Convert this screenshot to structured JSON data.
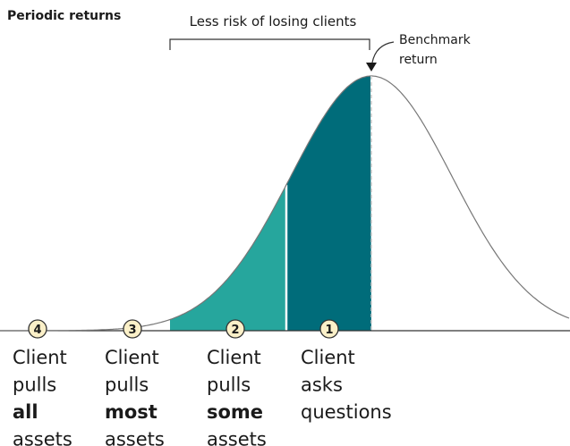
{
  "header": {
    "title": "Periodic returns"
  },
  "bracket": {
    "label": "Less risk of losing clients"
  },
  "benchmark": {
    "lines": [
      "Benchmark",
      "return"
    ]
  },
  "zones": [
    {
      "number": "4",
      "lines": [
        "Client",
        "pulls",
        "all",
        "assets"
      ]
    },
    {
      "number": "3",
      "lines": [
        "Client",
        "pulls",
        "most",
        "assets"
      ]
    },
    {
      "number": "2",
      "lines": [
        "Client",
        "pulls",
        "some",
        "assets"
      ]
    },
    {
      "number": "1",
      "lines": [
        "Client",
        "asks",
        "questions"
      ]
    }
  ]
}
